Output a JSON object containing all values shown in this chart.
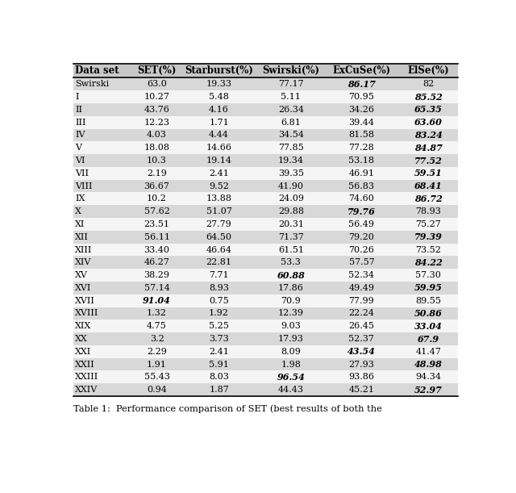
{
  "columns": [
    "Data set",
    "SET(%)",
    "Starburst(%)",
    "Swirski(%)",
    "ExCuSe(%)",
    "ElSe(%)"
  ],
  "rows": [
    [
      "Swirski",
      "63.0",
      "19.33",
      "77.17",
      "86.17",
      "82"
    ],
    [
      "I",
      "10.27",
      "5.48",
      "5.11",
      "70.95",
      "85.52"
    ],
    [
      "II",
      "43.76",
      "4.16",
      "26.34",
      "34.26",
      "65.35"
    ],
    [
      "III",
      "12.23",
      "1.71",
      "6.81",
      "39.44",
      "63.60"
    ],
    [
      "IV",
      "4.03",
      "4.44",
      "34.54",
      "81.58",
      "83.24"
    ],
    [
      "V",
      "18.08",
      "14.66",
      "77.85",
      "77.28",
      "84.87"
    ],
    [
      "VI",
      "10.3",
      "19.14",
      "19.34",
      "53.18",
      "77.52"
    ],
    [
      "VII",
      "2.19",
      "2.41",
      "39.35",
      "46.91",
      "59.51"
    ],
    [
      "VIII",
      "36.67",
      "9.52",
      "41.90",
      "56.83",
      "68.41"
    ],
    [
      "IX",
      "10.2",
      "13.88",
      "24.09",
      "74.60",
      "86.72"
    ],
    [
      "X",
      "57.62",
      "51.07",
      "29.88",
      "79.76",
      "78.93"
    ],
    [
      "XI",
      "23.51",
      "27.79",
      "20.31",
      "56.49",
      "75.27"
    ],
    [
      "XII",
      "56.11",
      "64.50",
      "71.37",
      "79.20",
      "79.39"
    ],
    [
      "XIII",
      "33.40",
      "46.64",
      "61.51",
      "70.26",
      "73.52"
    ],
    [
      "XIV",
      "46.27",
      "22.81",
      "53.3",
      "57.57",
      "84.22"
    ],
    [
      "XV",
      "38.29",
      "7.71",
      "60.88",
      "52.34",
      "57.30"
    ],
    [
      "XVI",
      "57.14",
      "8.93",
      "17.86",
      "49.49",
      "59.95"
    ],
    [
      "XVII",
      "91.04",
      "0.75",
      "70.9",
      "77.99",
      "89.55"
    ],
    [
      "XVIII",
      "1.32",
      "1.92",
      "12.39",
      "22.24",
      "50.86"
    ],
    [
      "XIX",
      "4.75",
      "5.25",
      "9.03",
      "26.45",
      "33.04"
    ],
    [
      "XX",
      "3.2",
      "3.73",
      "17.93",
      "52.37",
      "67.9"
    ],
    [
      "XXI",
      "2.29",
      "2.41",
      "8.09",
      "43.54",
      "41.47"
    ],
    [
      "XXII",
      "1.91",
      "5.91",
      "1.98",
      "27.93",
      "48.98"
    ],
    [
      "XXIII",
      "55.43",
      "8.03",
      "96.54",
      "93.86",
      "94.34"
    ],
    [
      "XXIV",
      "0.94",
      "1.87",
      "44.43",
      "45.21",
      "52.97"
    ]
  ],
  "bold_italic_cells": {
    "0": [
      4
    ],
    "1": [
      5
    ],
    "2": [
      5
    ],
    "3": [
      5
    ],
    "4": [
      5
    ],
    "5": [
      5
    ],
    "6": [
      5
    ],
    "7": [
      5
    ],
    "8": [
      5
    ],
    "9": [
      5
    ],
    "10": [
      4
    ],
    "11": [],
    "12": [
      5
    ],
    "13": [],
    "14": [
      5
    ],
    "15": [
      3
    ],
    "16": [
      5
    ],
    "17": [
      1
    ],
    "18": [
      5
    ],
    "19": [
      5
    ],
    "20": [
      5
    ],
    "21": [
      4
    ],
    "22": [
      5
    ],
    "23": [
      3
    ],
    "24": [
      5
    ]
  },
  "figsize": [
    6.4,
    6.11
  ],
  "dpi": 100,
  "caption": "Table 1:  Performance comparison of SET (best results of both the"
}
